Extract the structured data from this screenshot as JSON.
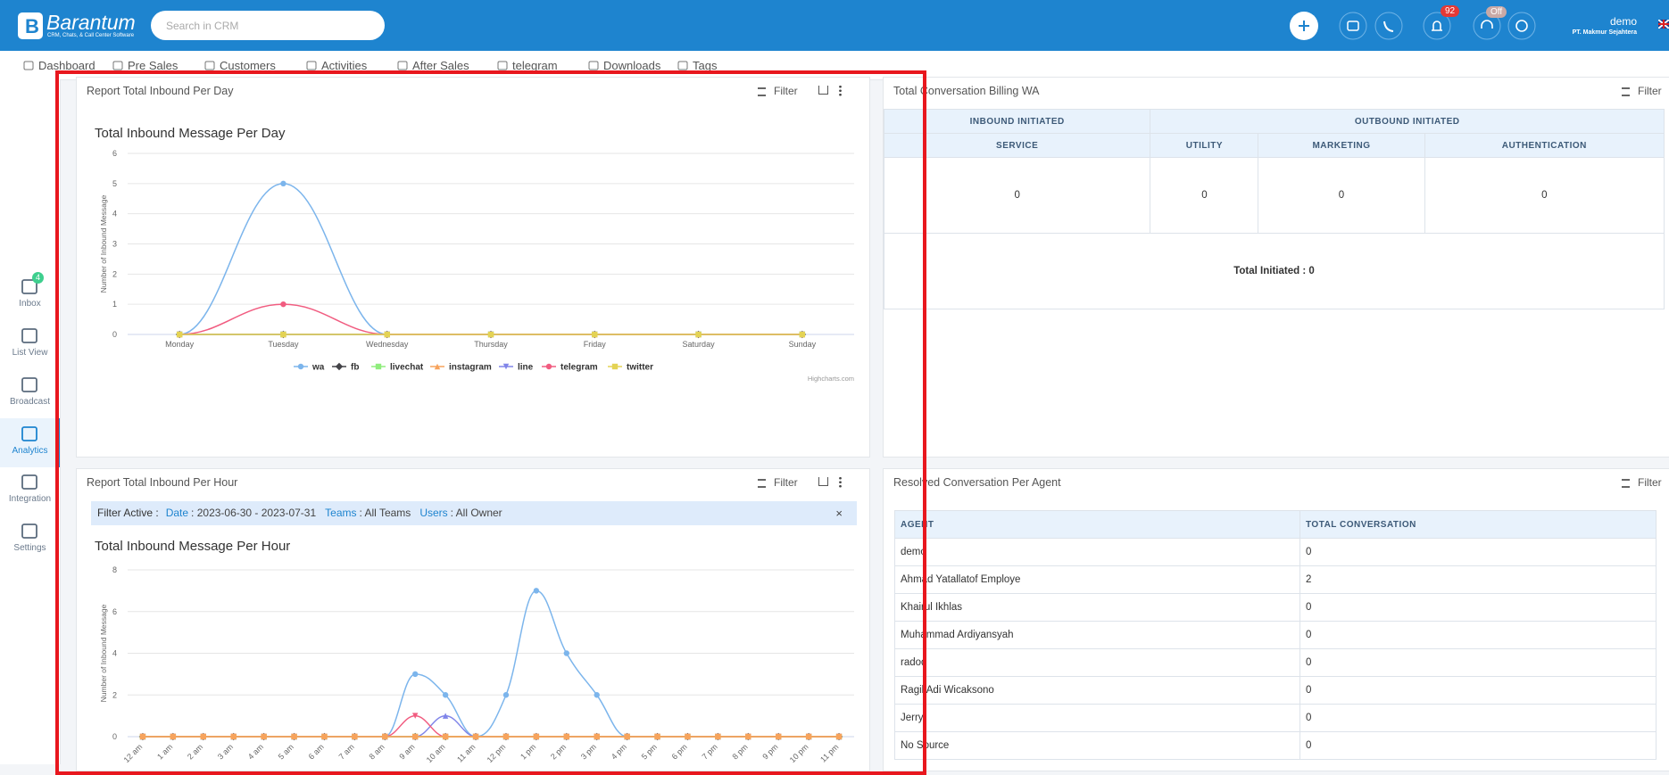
{
  "header": {
    "logo": "Barantum",
    "tagline": "CRM, Chats, & Call Center Software",
    "search_placeholder": "Search in CRM",
    "notification_badge": "92",
    "call_status": "Off",
    "user": "demo",
    "company": "PT. Makmur Sejahtera"
  },
  "nav": [
    "Dashboard",
    "Pre Sales",
    "Customers",
    "Activities",
    "After Sales",
    "telegram",
    "Downloads",
    "Tags"
  ],
  "sidebar": [
    {
      "label": "Inbox",
      "badge": "4"
    },
    {
      "label": "List View"
    },
    {
      "label": "Broadcast"
    },
    {
      "label": "Analytics"
    },
    {
      "label": "Integration"
    },
    {
      "label": "Settings"
    }
  ],
  "panels": [
    {
      "title": "Report Total Inbound Per Day",
      "filter": "Filter"
    },
    {
      "title": "Total Conversation Billing WA",
      "filter": "Filter"
    },
    {
      "title": "Report Total Inbound Per Hour",
      "filter": "Filter"
    },
    {
      "title": "Resolved Conversation Per Agent",
      "filter": "Filter"
    }
  ],
  "filter_active": {
    "label": "Filter Active :",
    "items": [
      {
        "key": "Date",
        "value": ": 2023-06-30 - 2023-07-31"
      },
      {
        "key": "Teams",
        "value": ": All Teams"
      },
      {
        "key": "Users",
        "value": ": All Owner"
      }
    ],
    "close": "×"
  },
  "billing_table": {
    "groups": [
      "INBOUND INITIATED",
      "OUTBOUND INITIATED"
    ],
    "columns": [
      "SERVICE",
      "UTILITY",
      "MARKETING",
      "AUTHENTICATION"
    ],
    "values": [
      0,
      0,
      0,
      0
    ],
    "total": "Total Initiated : 0"
  },
  "agent_table": {
    "columns": [
      "AGENT",
      "TOTAL CONVERSATION"
    ],
    "rows": [
      [
        "demo",
        0
      ],
      [
        "Ahmad Yatallatof Employe",
        2
      ],
      [
        "Khairul Ikhlas",
        0
      ],
      [
        "Muhammad Ardiyansyah",
        0
      ],
      [
        "radod",
        0
      ],
      [
        "Ragil Adi Wicaksono",
        0
      ],
      [
        "Jerry",
        0
      ],
      [
        "No Source",
        0
      ]
    ]
  },
  "chart_data": [
    {
      "type": "line",
      "title": "Total Inbound Message Per Day",
      "y_label": "Number of Inbound Message",
      "credits": "Highcharts.com",
      "grid": true,
      "categories": [
        "Monday",
        "Tuesday",
        "Wednesday",
        "Thursday",
        "Friday",
        "Saturday",
        "Sunday"
      ],
      "ylim": [
        0,
        6
      ],
      "yticks": [
        0,
        1,
        2,
        3,
        4,
        5,
        6
      ],
      "series": [
        {
          "name": "wa",
          "color": "#7cb5ec",
          "values": [
            0,
            5,
            0,
            0,
            0,
            0,
            0
          ]
        },
        {
          "name": "fb",
          "color": "#434348",
          "values": [
            0,
            0,
            0,
            0,
            0,
            0,
            0
          ]
        },
        {
          "name": "livechat",
          "color": "#90ed7d",
          "values": [
            0,
            0,
            0,
            0,
            0,
            0,
            0
          ]
        },
        {
          "name": "instagram",
          "color": "#f7a35c",
          "values": [
            0,
            0,
            0,
            0,
            0,
            0,
            0
          ]
        },
        {
          "name": "line",
          "color": "#8085e9",
          "values": [
            0,
            0,
            0,
            0,
            0,
            0,
            0
          ]
        },
        {
          "name": "telegram",
          "color": "#f15c80",
          "values": [
            0,
            1,
            0,
            0,
            0,
            0,
            0
          ]
        },
        {
          "name": "twitter",
          "color": "#e4d354",
          "values": [
            0,
            0,
            0,
            0,
            0,
            0,
            0
          ]
        }
      ]
    },
    {
      "type": "line",
      "title": "Total Inbound Message Per Hour",
      "y_label": "Number of Inbound Message",
      "grid": true,
      "categories": [
        "12 am",
        "1 am",
        "2 am",
        "3 am",
        "4 am",
        "5 am",
        "6 am",
        "7 am",
        "8 am",
        "9 am",
        "10 am",
        "11 am",
        "12 pm",
        "1 pm",
        "2 pm",
        "3 pm",
        "4 pm",
        "5 pm",
        "6 pm",
        "7 pm",
        "8 pm",
        "9 pm",
        "10 pm",
        "11 pm"
      ],
      "ylim": [
        0,
        8
      ],
      "yticks": [
        0,
        2,
        4,
        6,
        8
      ],
      "series": [
        {
          "color": "#7cb5ec",
          "values": [
            0,
            0,
            0,
            0,
            0,
            0,
            0,
            0,
            0,
            3,
            2,
            0,
            2,
            7,
            4,
            2,
            0,
            0,
            0,
            0,
            0,
            0,
            0,
            0
          ]
        },
        {
          "color": "#434348",
          "values": [
            0,
            0,
            0,
            0,
            0,
            0,
            0,
            0,
            0,
            0,
            0,
            0,
            0,
            0,
            0,
            0,
            0,
            0,
            0,
            0,
            0,
            0,
            0,
            0
          ]
        },
        {
          "color": "#90ed7d",
          "values": [
            0,
            0,
            0,
            0,
            0,
            0,
            0,
            0,
            0,
            0,
            0,
            0,
            0,
            0,
            0,
            0,
            0,
            0,
            0,
            0,
            0,
            0,
            0,
            0
          ]
        },
        {
          "color": "#8085e9",
          "values": [
            0,
            0,
            0,
            0,
            0,
            0,
            0,
            0,
            0,
            0,
            1,
            0,
            0,
            0,
            0,
            0,
            0,
            0,
            0,
            0,
            0,
            0,
            0,
            0
          ]
        },
        {
          "color": "#f15c80",
          "values": [
            0,
            0,
            0,
            0,
            0,
            0,
            0,
            0,
            0,
            1,
            0,
            0,
            0,
            0,
            0,
            0,
            0,
            0,
            0,
            0,
            0,
            0,
            0,
            0
          ]
        },
        {
          "color": "#e4d354",
          "values": [
            0,
            0,
            0,
            0,
            0,
            0,
            0,
            0,
            0,
            0,
            0,
            0,
            0,
            0,
            0,
            0,
            0,
            0,
            0,
            0,
            0,
            0,
            0,
            0
          ]
        },
        {
          "color": "#f7a35c",
          "values": [
            0,
            0,
            0,
            0,
            0,
            0,
            0,
            0,
            0,
            0,
            0,
            0,
            0,
            0,
            0,
            0,
            0,
            0,
            0,
            0,
            0,
            0,
            0,
            0
          ]
        }
      ]
    }
  ]
}
